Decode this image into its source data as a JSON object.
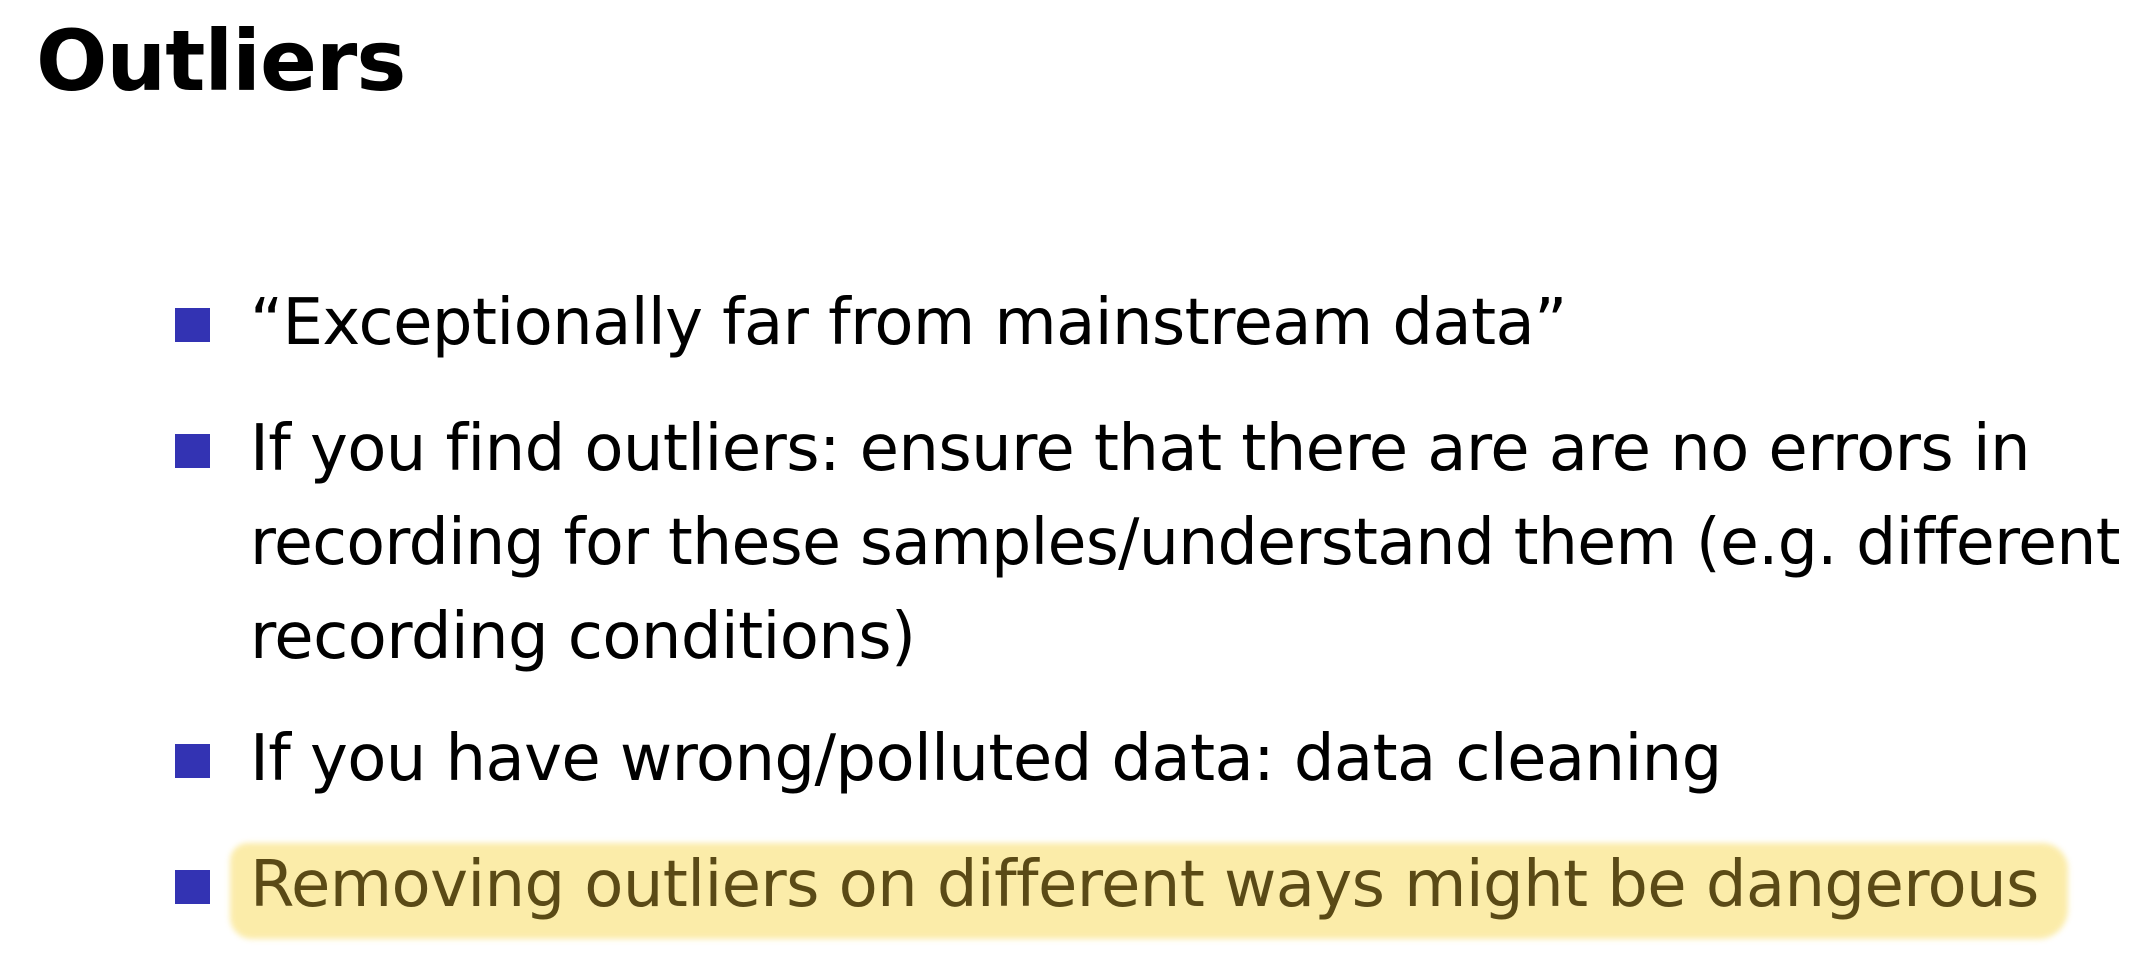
{
  "slide": {
    "title": "Outliers",
    "bullets": [
      {
        "lines": [
          "“Exceptionally far from mainstream data”"
        ]
      },
      {
        "lines": [
          "If you find outliers: ensure that there are are no errors in",
          "recording for these samples/understand them (e.g. different",
          "recording conditions)"
        ]
      },
      {
        "lines": [
          "If you have wrong/polluted data: data cleaning"
        ]
      },
      {
        "lines": [
          "Removing outliers on different ways might be dangerous"
        ],
        "highlighted": true
      }
    ],
    "colors": {
      "bullet": "#3333b3",
      "highlight": "#fbeaa0",
      "highlighted_text": "#5a4a16"
    }
  }
}
